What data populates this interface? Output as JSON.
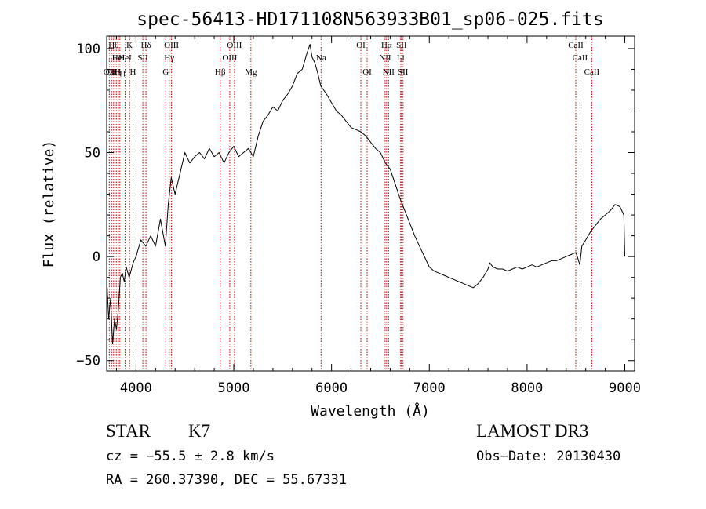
{
  "chart_data": {
    "type": "line",
    "title": "spec-56413-HD171108N563933B01_sp06-025.fits",
    "xlabel": "Wavelength (Å)",
    "ylabel": "Flux (relative)",
    "xlim": [
      3700,
      9100
    ],
    "ylim": [
      -55,
      106
    ],
    "xticks": [
      4000,
      5000,
      6000,
      7000,
      8000,
      9000
    ],
    "yticks": [
      -50,
      0,
      50,
      100
    ],
    "grid": false,
    "line_color": "#000000",
    "marker_color": "#c00000",
    "series": [
      {
        "x": [
          3700,
          3720,
          3740,
          3760,
          3780,
          3800,
          3820,
          3840,
          3860,
          3880,
          3900,
          3930,
          3970,
          4000,
          4050,
          4100,
          4150,
          4200,
          4250,
          4300,
          4330,
          4360,
          4400,
          4450,
          4500,
          4550,
          4600,
          4650,
          4700,
          4750,
          4800,
          4850,
          4900,
          4950,
          5000,
          5050,
          5100,
          5150,
          5200,
          5250,
          5300,
          5350,
          5400,
          5450,
          5500,
          5550,
          5600,
          5650,
          5700,
          5750,
          5780,
          5800,
          5830,
          5860,
          5890,
          5920,
          5950,
          6000,
          6050,
          6100,
          6150,
          6200,
          6250,
          6300,
          6350,
          6400,
          6450,
          6500,
          6550,
          6600,
          6650,
          6700,
          6750,
          6800,
          6850,
          6900,
          6950,
          7000,
          7050,
          7100,
          7150,
          7200,
          7250,
          7300,
          7350,
          7400,
          7450,
          7500,
          7550,
          7600,
          7620,
          7650,
          7700,
          7750,
          7800,
          7850,
          7900,
          7950,
          8000,
          8050,
          8100,
          8150,
          8200,
          8250,
          8300,
          8350,
          8400,
          8450,
          8500,
          8540,
          8560,
          8600,
          8650,
          8700,
          8750,
          8800,
          8850,
          8900,
          8950,
          8990,
          9000
        ],
        "y": [
          -10,
          -30,
          -20,
          -42,
          -30,
          -35,
          -25,
          -10,
          -8,
          -12,
          -5,
          -10,
          -3,
          0,
          8,
          5,
          10,
          5,
          18,
          5,
          25,
          38,
          30,
          40,
          50,
          45,
          48,
          50,
          47,
          52,
          48,
          50,
          45,
          50,
          53,
          48,
          50,
          52,
          48,
          58,
          65,
          68,
          72,
          70,
          75,
          78,
          82,
          88,
          90,
          98,
          102,
          96,
          93,
          88,
          82,
          80,
          78,
          74,
          70,
          68,
          65,
          62,
          61,
          60,
          58,
          55,
          52,
          50,
          45,
          42,
          35,
          28,
          22,
          16,
          10,
          5,
          0,
          -5,
          -7,
          -8,
          -9,
          -10,
          -11,
          -12,
          -13,
          -14,
          -15,
          -13,
          -10,
          -6,
          -3,
          -5,
          -6,
          -6,
          -7,
          -6,
          -5,
          -6,
          -5,
          -4,
          -5,
          -4,
          -3,
          -2,
          -2,
          -1,
          0,
          1,
          2,
          -4,
          5,
          8,
          12,
          15,
          18,
          20,
          22,
          25,
          24,
          20,
          0
        ]
      }
    ],
    "lines": [
      {
        "x": 3727,
        "label": "OII",
        "row": 2
      },
      {
        "x": 3750,
        "label": "OII",
        "row": 2
      },
      {
        "x": 3771,
        "label": "Hθ",
        "row": 0
      },
      {
        "x": 3798,
        "label": "Hη",
        "row": 2
      },
      {
        "x": 3820,
        "label": "HeI",
        "row": 1
      },
      {
        "x": 3835,
        "label": "Hη",
        "row": 2
      },
      {
        "x": 3889,
        "label": "HeI",
        "row": 1
      },
      {
        "x": 3934,
        "label": "K",
        "row": 0
      },
      {
        "x": 3969,
        "label": "H",
        "row": 2
      },
      {
        "x": 4070,
        "label": "SII",
        "row": 1
      },
      {
        "x": 4102,
        "label": "Hδ",
        "row": 0
      },
      {
        "x": 4304,
        "label": "G",
        "row": 2
      },
      {
        "x": 4340,
        "label": "Hγ",
        "row": 1
      },
      {
        "x": 4363,
        "label": "OIII",
        "row": 0
      },
      {
        "x": 4861,
        "label": "Hβ",
        "row": 2
      },
      {
        "x": 4959,
        "label": "OIII",
        "row": 1
      },
      {
        "x": 5007,
        "label": "OIII",
        "row": 0
      },
      {
        "x": 5175,
        "label": "Mg",
        "row": 2
      },
      {
        "x": 5893,
        "label": "Na",
        "row": 1
      },
      {
        "x": 6300,
        "label": "OI",
        "row": 0
      },
      {
        "x": 6364,
        "label": "OI",
        "row": 2
      },
      {
        "x": 6548,
        "label": "NII",
        "row": 1
      },
      {
        "x": 6563,
        "label": "Hα",
        "row": 0
      },
      {
        "x": 6583,
        "label": "NII",
        "row": 2
      },
      {
        "x": 6707,
        "label": "Li",
        "row": 1
      },
      {
        "x": 6716,
        "label": "SII",
        "row": 0
      },
      {
        "x": 6731,
        "label": "SII",
        "row": 2
      },
      {
        "x": 8498,
        "label": "CaII",
        "row": 0
      },
      {
        "x": 8542,
        "label": "CaII",
        "row": 1
      },
      {
        "x": 8662,
        "label": "CaII",
        "row": 2
      }
    ]
  },
  "info": {
    "class": "STAR",
    "subclass": "K7",
    "survey": "LAMOST DR3",
    "cz": "cz = −55.5 ± 2.8 km/s",
    "obs_date": "Obs−Date: 20130430",
    "coords": "RA = 260.37390, DEC =  55.67331"
  }
}
